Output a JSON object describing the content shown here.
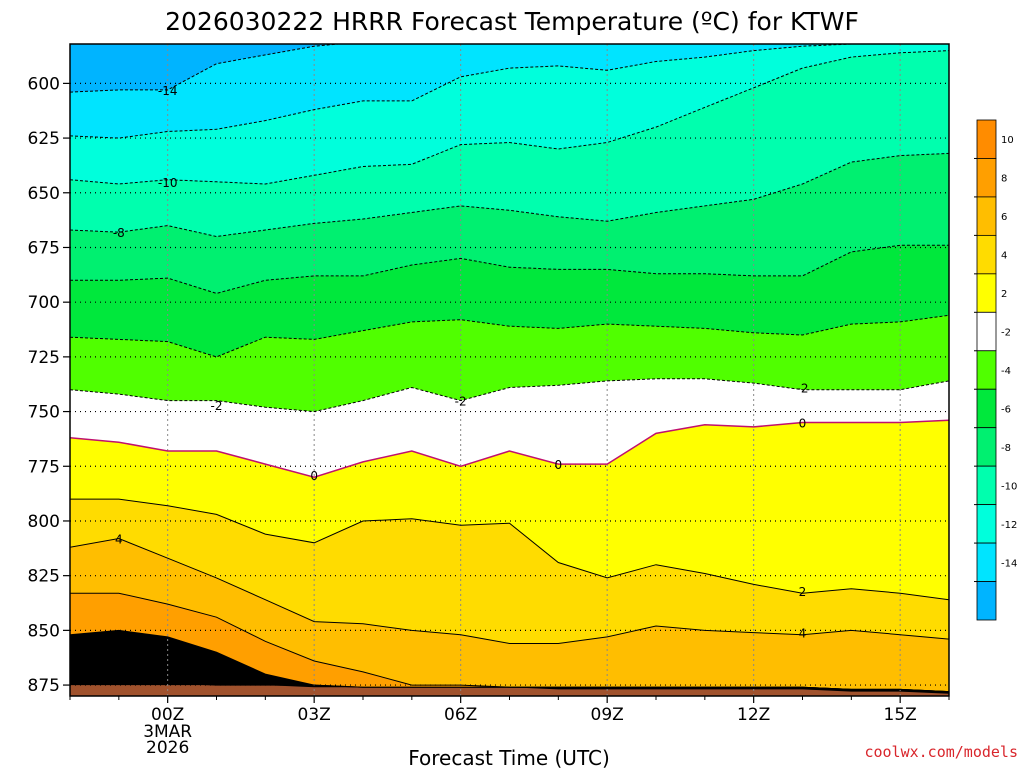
{
  "chart_data": {
    "type": "contour",
    "title": "2026030222 HRRR Forecast Temperature (ºC) for KTWF",
    "xlabel": "Forecast Time (UTC)",
    "ylabel": "",
    "credit": "coolwx.com/models",
    "x_ticks": [
      "00Z",
      "03Z",
      "06Z",
      "09Z",
      "12Z",
      "15Z"
    ],
    "x_date_lines": [
      "3MAR",
      "2026"
    ],
    "x_range_hours": [
      -2,
      16
    ],
    "y_ticks": [
      600,
      625,
      650,
      675,
      700,
      725,
      750,
      775,
      800,
      825,
      850,
      875
    ],
    "y_range_hPa": [
      582,
      880
    ],
    "colorbar_ticks": [
      10,
      8,
      6,
      4,
      2,
      -2,
      -4,
      -6,
      -8,
      -10,
      -12,
      -14
    ],
    "colorbar_colors": [
      "#ff8c00",
      "#ff9f00",
      "#ffbe00",
      "#ffdc00",
      "#ffff00",
      "#ffffff",
      "#50ff00",
      "#00e83c",
      "#00f070",
      "#00ffae",
      "#00ffdc",
      "#00e4ff",
      "#00b4ff"
    ],
    "fill_colors": [
      "#00b4ff",
      "#00e4ff",
      "#00ffdc",
      "#00ffae",
      "#00f070",
      "#00e83c",
      "#50ff00",
      "#ffffff",
      "#ffff00",
      "#ffdc00",
      "#ffbe00",
      "#ff9f00"
    ],
    "ground_color": "#a0522d",
    "hours": [
      -2,
      -1,
      0,
      1,
      2,
      3,
      4,
      5,
      6,
      7,
      8,
      9,
      10,
      11,
      12,
      13,
      14,
      15,
      16
    ],
    "ground_hPa": [
      875,
      875,
      875,
      875,
      875,
      876,
      876,
      876,
      876,
      876,
      877,
      877,
      877,
      877,
      877,
      877,
      878,
      878,
      879
    ],
    "contours": [
      {
        "level": -14,
        "style": "dashed",
        "color": "#000000",
        "pressure_hPa": [
          604,
          603,
          603,
          591,
          587,
          583,
          581,
          581,
          581,
          581,
          581,
          581,
          581,
          581,
          581,
          581,
          581,
          581,
          580
        ]
      },
      {
        "level": -12,
        "style": "dashed",
        "color": "#000000",
        "pressure_hPa": [
          624,
          625,
          622,
          621,
          617,
          612,
          608,
          608,
          597,
          593,
          592,
          594,
          590,
          588,
          585,
          583,
          582,
          582,
          582
        ]
      },
      {
        "level": -10,
        "style": "dashed",
        "color": "#000000",
        "pressure_hPa": [
          644,
          646,
          644,
          645,
          646,
          642,
          638,
          637,
          628,
          627,
          630,
          627,
          620,
          611,
          602,
          593,
          588,
          586,
          585
        ]
      },
      {
        "level": -8,
        "style": "dashed",
        "color": "#000000",
        "pressure_hPa": [
          667,
          668,
          665,
          670,
          667,
          664,
          662,
          659,
          656,
          658,
          661,
          663,
          659,
          656,
          653,
          646,
          636,
          633,
          632
        ]
      },
      {
        "level": -6,
        "style": "dashed",
        "color": "#000000",
        "pressure_hPa": [
          690,
          690,
          689,
          696,
          690,
          688,
          688,
          683,
          680,
          684,
          685,
          685,
          687,
          687,
          688,
          688,
          677,
          674,
          674
        ]
      },
      {
        "level": -4,
        "style": "dashed",
        "color": "#000000",
        "pressure_hPa": [
          716,
          717,
          718,
          725,
          716,
          717,
          713,
          709,
          708,
          711,
          712,
          710,
          711,
          712,
          714,
          715,
          710,
          709,
          706
        ]
      },
      {
        "level": -2,
        "style": "dashed",
        "color": "#000000",
        "pressure_hPa": [
          740,
          742,
          745,
          745,
          748,
          750,
          745,
          739,
          745,
          739,
          738,
          736,
          735,
          735,
          737,
          740,
          740,
          740,
          736
        ]
      },
      {
        "level": 0,
        "style": "solid",
        "color": "#c0106e",
        "pressure_hPa": [
          762,
          764,
          768,
          768,
          774,
          780,
          773,
          768,
          775,
          768,
          774,
          774,
          760,
          756,
          757,
          755,
          755,
          755,
          754
        ]
      },
      {
        "level": 2,
        "style": "solid",
        "color": "#000000",
        "pressure_hPa": [
          790,
          790,
          793,
          797,
          806,
          810,
          800,
          799,
          802,
          801,
          819,
          826,
          820,
          824,
          829,
          833,
          831,
          833,
          836
        ]
      },
      {
        "level": 4,
        "style": "solid",
        "color": "#000000",
        "pressure_hPa": [
          812,
          808,
          817,
          826,
          836,
          846,
          847,
          850,
          852,
          856,
          856,
          853,
          848,
          850,
          851,
          852,
          850,
          852,
          854
        ]
      },
      {
        "level": 6,
        "style": "solid",
        "color": "#000000",
        "pressure_hPa": [
          833,
          833,
          838,
          844,
          855,
          864,
          869,
          875,
          875,
          876,
          876,
          876,
          876,
          876,
          876,
          876,
          877,
          877,
          878
        ]
      },
      {
        "level": 8,
        "style": "solid",
        "color": "#000000",
        "pressure_hPa": [
          852,
          850,
          853,
          860,
          870,
          875,
          876,
          876,
          876,
          876,
          876,
          876,
          876,
          876,
          876,
          876,
          877,
          877,
          878
        ]
      },
      {
        "level": 10,
        "style": "solid",
        "color": "#000000",
        "pressure_hPa": [
          874,
          872,
          874,
          875,
          875,
          875,
          876,
          876,
          876,
          876,
          876,
          876,
          876,
          876,
          876,
          876,
          877,
          877,
          878
        ]
      }
    ],
    "contour_labels": [
      {
        "text": "-14",
        "hour": 0,
        "hPa": 603
      },
      {
        "text": "-10",
        "hour": 0,
        "hPa": 645
      },
      {
        "text": "-8",
        "hour": -1,
        "hPa": 668
      },
      {
        "text": "-2",
        "hour": 1,
        "hPa": 747
      },
      {
        "text": "-2",
        "hour": 6,
        "hPa": 745
      },
      {
        "text": "-2",
        "hour": 13,
        "hPa": 739
      },
      {
        "text": "0",
        "hour": 3,
        "hPa": 779
      },
      {
        "text": "0",
        "hour": 8,
        "hPa": 774
      },
      {
        "text": "0",
        "hour": 13,
        "hPa": 755
      },
      {
        "text": "4",
        "hour": -1,
        "hPa": 808
      },
      {
        "text": "2",
        "hour": 13,
        "hPa": 832
      },
      {
        "text": "4",
        "hour": 13,
        "hPa": 851
      }
    ]
  }
}
